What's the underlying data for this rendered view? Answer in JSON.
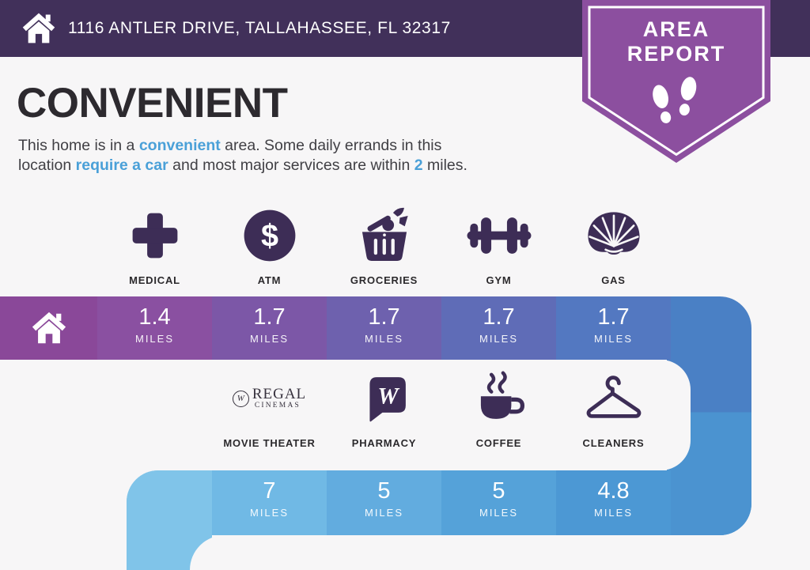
{
  "colors": {
    "page_bg": "#F7F6F7",
    "header_bg": "#41305A",
    "badge_purple": "#8C4F9F",
    "icon_purple": "#3D2D56",
    "text_dark": "#2D2A2F",
    "body_text": "#414045",
    "highlight_blue": "#4AA0D8"
  },
  "header": {
    "icon": "house-icon",
    "address": "1116 ANTLER DRIVE, TALLAHASSEE, FL 32317"
  },
  "badge": {
    "line1": "AREA",
    "line2": "REPORT",
    "icon": "footprints-icon"
  },
  "rating": {
    "title": "CONVENIENT",
    "description_lines": [
      [
        {
          "text": "This home is in a "
        },
        {
          "text": "convenient",
          "highlight": true
        },
        {
          "text": " area. Some daily errands in this"
        }
      ],
      [
        {
          "text": "location "
        },
        {
          "text": "require a car",
          "highlight": true
        },
        {
          "text": " and most major services are within "
        },
        {
          "text": "2",
          "highlight": true
        },
        {
          "text": " miles."
        }
      ]
    ]
  },
  "origin": {
    "icon": "house-icon",
    "cell_color": "#8A4899"
  },
  "row1": {
    "items": [
      {
        "label": "MEDICAL",
        "icon": "medical-icon",
        "value": "1.4",
        "unit": "MILES",
        "cell_color": "#8A50A1"
      },
      {
        "label": "ATM",
        "icon": "atm-icon",
        "value": "1.7",
        "unit": "MILES",
        "cell_color": "#7C57A7"
      },
      {
        "label": "GROCERIES",
        "icon": "groceries-icon",
        "value": "1.7",
        "unit": "MILES",
        "cell_color": "#6E61AE"
      },
      {
        "label": "GYM",
        "icon": "gym-icon",
        "value": "1.7",
        "unit": "MILES",
        "cell_color": "#5F6CB7"
      },
      {
        "label": "GAS",
        "icon": "gas-icon",
        "value": "1.7",
        "unit": "MILES",
        "cell_color": "#5378C1"
      }
    ]
  },
  "row2": {
    "items": [
      {
        "label": "MOVIE THEATER",
        "icon": "regal-cinemas-logo",
        "value": "7",
        "unit": "MILES",
        "cell_color": "#70B9E5"
      },
      {
        "label": "PHARMACY",
        "icon": "walgreens-logo",
        "value": "5",
        "unit": "MILES",
        "cell_color": "#62ACDF"
      },
      {
        "label": "COFFEE",
        "icon": "coffee-icon",
        "value": "5",
        "unit": "MILES",
        "cell_color": "#55A2D9"
      },
      {
        "label": "CLEANERS",
        "icon": "cleaners-icon",
        "value": "4.8",
        "unit": "MILES",
        "cell_color": "#4C98D4"
      }
    ]
  },
  "band": {
    "turn_right_top": "#4A80C5",
    "turn_right_bottom": "#4B93D0",
    "turn_left": "#80C4E9"
  },
  "icon_text": {
    "atm_symbol": "$",
    "walgreens_letter": "W",
    "regal_mark": "W",
    "regal_line1": "REGAL",
    "regal_line2": "CINEMAS"
  }
}
